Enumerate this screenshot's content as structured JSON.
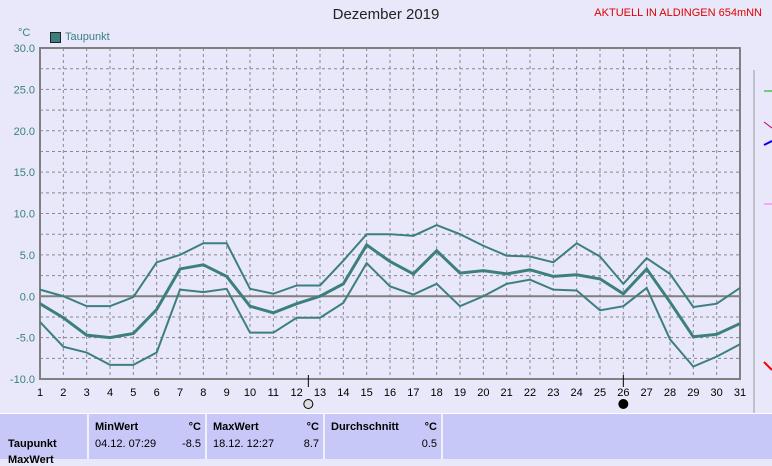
{
  "header": {
    "title": "Dezember 2019",
    "live": "AKTUELL IN ALDINGEN 654mNN",
    "unit": "°C",
    "legend": "Taupunkt"
  },
  "chart_data": {
    "type": "line",
    "title": "Dezember 2019",
    "ylabel": "°C",
    "ylim": [
      -10,
      30
    ],
    "yticks": [
      "30.0",
      "25.0",
      "20.0",
      "15.0",
      "10.0",
      "5.0",
      "0.0",
      "-5.0",
      "-10.0"
    ],
    "x": [
      1,
      2,
      3,
      4,
      5,
      6,
      7,
      8,
      9,
      10,
      11,
      12,
      13,
      14,
      15,
      16,
      17,
      18,
      19,
      20,
      21,
      22,
      23,
      24,
      25,
      26,
      27,
      28,
      29,
      30,
      31
    ],
    "series": [
      {
        "name": "Taupunkt max",
        "values": [
          0.8,
          0,
          -1.2,
          -1.2,
          -0.1,
          4.1,
          5,
          6.4,
          6.4,
          0.9,
          0.3,
          1.3,
          1.3,
          4.3,
          7.5,
          7.5,
          7.3,
          8.6,
          7.5,
          6.1,
          4.9,
          4.8,
          4.1,
          6.4,
          4.8,
          1.5,
          4.6,
          2.7,
          -1.3,
          -0.9,
          1
        ]
      },
      {
        "name": "Taupunkt",
        "values": [
          -0.9,
          -2.6,
          -4.7,
          -5,
          -4.5,
          -1.6,
          3.3,
          3.8,
          2.4,
          -1.2,
          -2,
          -0.9,
          0,
          1.5,
          6.2,
          4.2,
          2.7,
          5.5,
          2.8,
          3.1,
          2.7,
          3.2,
          2.4,
          2.6,
          2.1,
          0.3,
          3.3,
          -0.7,
          -4.9,
          -4.6,
          -3.3
        ]
      },
      {
        "name": "Taupunkt min",
        "values": [
          -3.1,
          -6.1,
          -6.8,
          -8.3,
          -8.3,
          -6.8,
          0.8,
          0.5,
          0.9,
          -4.4,
          -4.4,
          -2.6,
          -2.6,
          -0.8,
          4,
          1.2,
          0.2,
          1.5,
          -1.2,
          0,
          1.5,
          2,
          0.8,
          0.7,
          -1.7,
          -1.2,
          1,
          -5.2,
          -8.5,
          -7.3,
          -5.8
        ]
      }
    ],
    "color": "#3d7f7f",
    "moon_phases": [
      {
        "day": 12.5,
        "phase": "full"
      },
      {
        "day": 26,
        "phase": "new"
      }
    ]
  },
  "table": {
    "row_label": "Taupunkt",
    "next_row_label": "MaxWert",
    "min": {
      "label": "MinWert",
      "unit": "°C",
      "time": "04.12.  07:29",
      "value": "-8.5"
    },
    "max": {
      "label": "MaxWert",
      "unit": "°C",
      "time": "18.12.  12:27",
      "value": "8.7"
    },
    "avg": {
      "label": "Durchschnitt",
      "unit": "°C",
      "value": "0.5"
    }
  }
}
